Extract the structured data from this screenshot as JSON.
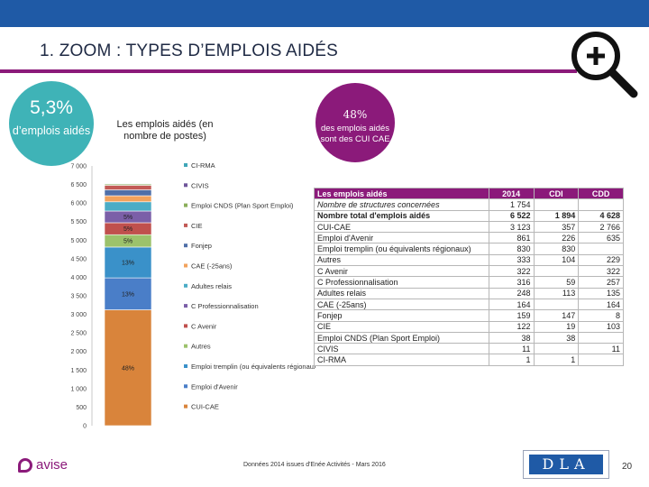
{
  "header": {
    "title": "1. ZOOM : TYPES D’EMPLOIS AIDÉS"
  },
  "stat_left": {
    "value": "5,3%",
    "label": "d’emplois aidés"
  },
  "stat_right": {
    "value": "48%",
    "label": "des emplois aidés sont des CUI CAE"
  },
  "chart_data": {
    "type": "bar",
    "stacked": true,
    "title": "Les emplois aidés (en nombre de postes)",
    "ylim": [
      0,
      7000
    ],
    "yticks": [
      "7 000",
      "6 500",
      "6 000",
      "5 500",
      "5 000",
      "4 500",
      "4 000",
      "3 500",
      "3 000",
      "2 500",
      "2 000",
      "1 500",
      "1 000",
      "500",
      "0"
    ],
    "series": [
      {
        "name": "CUI-CAE",
        "value": 3123,
        "color": "#d9843b",
        "label": "48%"
      },
      {
        "name": "Emploi d'Avenir",
        "value": 861,
        "color": "#4a7ec8",
        "label": "13%"
      },
      {
        "name": "Emploi tremplin (ou équivalents régionaux)",
        "value": 830,
        "color": "#3a91c9",
        "label": "13%"
      },
      {
        "name": "Autres",
        "value": 333,
        "color": "#9cc26b",
        "label": "5%"
      },
      {
        "name": "C Avenir",
        "value": 322,
        "color": "#c0504d",
        "label": "5%"
      },
      {
        "name": "C Professionnalisation",
        "value": 316,
        "color": "#7b5fa8",
        "label": "5%"
      },
      {
        "name": "Adultes relais",
        "value": 248,
        "color": "#4bacc6",
        "label": ""
      },
      {
        "name": "CAE (-25ans)",
        "value": 164,
        "color": "#f2a25c",
        "label": ""
      },
      {
        "name": "Fonjep",
        "value": 159,
        "color": "#4f6fa8",
        "label": ""
      },
      {
        "name": "CIE",
        "value": 122,
        "color": "#c25a56",
        "label": ""
      },
      {
        "name": "Emploi CNDS (Plan Sport Emploi)",
        "value": 38,
        "color": "#8aae5a",
        "label": ""
      },
      {
        "name": "CIVIS",
        "value": 11,
        "color": "#6f559a",
        "label": ""
      },
      {
        "name": "CI-RMA",
        "value": 1,
        "color": "#3fa6b8",
        "label": ""
      }
    ],
    "legend": [
      "CI-RMA",
      "CIVIS",
      "Emploi CNDS (Plan Sport Emploi)",
      "CIE",
      "Fonjep",
      "CAE (-25ans)",
      "Adultes relais",
      "C Professionnalisation",
      "C Avenir",
      "Autres",
      "Emploi tremplin (ou équivalents régionaux)",
      "Emploi d'Avenir",
      "CUI-CAE"
    ]
  },
  "table": {
    "headers": [
      "Les emplois aidés",
      "2014",
      "CDI",
      "CDD"
    ],
    "rows": [
      {
        "name": "Nombre de structures concernées",
        "v2014": "1 754",
        "cdi": "",
        "cdd": "",
        "style": "italic"
      },
      {
        "name": "Nombre total d'emplois aidés",
        "v2014": "6 522",
        "cdi": "1 894",
        "cdd": "4 628",
        "style": "bold"
      },
      {
        "name": "CUI-CAE",
        "v2014": "3 123",
        "cdi": "357",
        "cdd": "2 766",
        "style": ""
      },
      {
        "name": "Emploi d'Avenir",
        "v2014": "861",
        "cdi": "226",
        "cdd": "635",
        "style": ""
      },
      {
        "name": "Emploi tremplin (ou équivalents régionaux)",
        "v2014": "830",
        "cdi": "830",
        "cdd": "",
        "style": ""
      },
      {
        "name": "Autres",
        "v2014": "333",
        "cdi": "104",
        "cdd": "229",
        "style": ""
      },
      {
        "name": "C Avenir",
        "v2014": "322",
        "cdi": "",
        "cdd": "322",
        "style": ""
      },
      {
        "name": "C Professionnalisation",
        "v2014": "316",
        "cdi": "59",
        "cdd": "257",
        "style": ""
      },
      {
        "name": "Adultes relais",
        "v2014": "248",
        "cdi": "113",
        "cdd": "135",
        "style": ""
      },
      {
        "name": "CAE (-25ans)",
        "v2014": "164",
        "cdi": "",
        "cdd": "164",
        "style": ""
      },
      {
        "name": "Fonjep",
        "v2014": "159",
        "cdi": "147",
        "cdd": "8",
        "style": ""
      },
      {
        "name": "CIE",
        "v2014": "122",
        "cdi": "19",
        "cdd": "103",
        "style": ""
      },
      {
        "name": "Emploi CNDS (Plan Sport Emploi)",
        "v2014": "38",
        "cdi": "38",
        "cdd": "",
        "style": ""
      },
      {
        "name": "CIVIS",
        "v2014": "11",
        "cdi": "",
        "cdd": "11",
        "style": ""
      },
      {
        "name": "CI-RMA",
        "v2014": "1",
        "cdi": "1",
        "cdd": "",
        "style": ""
      }
    ]
  },
  "footer": {
    "logo": "avise",
    "source": "Données 2014 issues d'Enée Activités - Mars 2016",
    "partner_logo": "DLA",
    "page_number": "20"
  },
  "colors": {
    "brand_blue": "#1f5aa6",
    "brand_purple": "#8b1a7a",
    "teal": "#3fb3b7"
  }
}
